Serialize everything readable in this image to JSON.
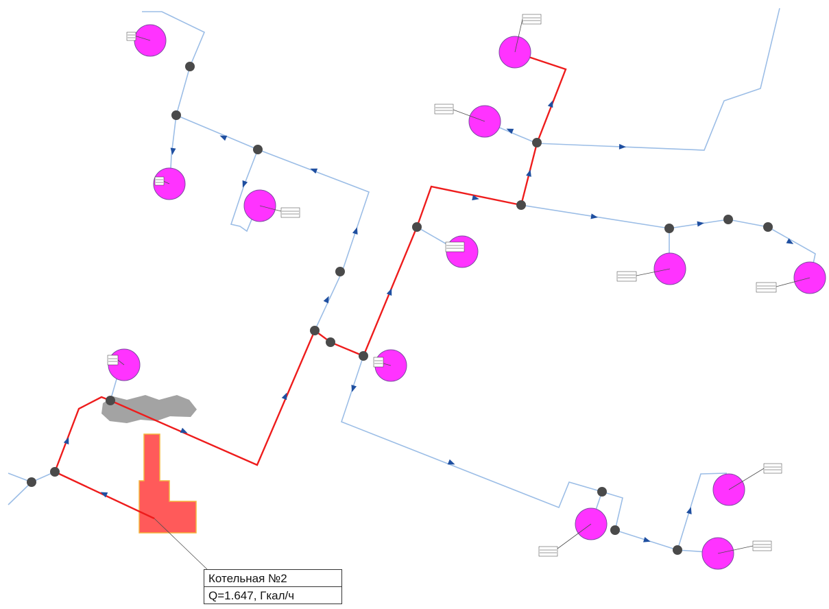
{
  "diagram": {
    "colors": {
      "supply_pipe": "#ee1c1c",
      "network_pipe": "#9bbde6",
      "consumer": "#ff33ff",
      "node": "#4a4a4a",
      "boiler_house": "#ff5a5a",
      "flow_arrow": "#1f4fa0"
    },
    "boiler_label": {
      "name": "Котельная №2",
      "load": "Q=1.647, Гкал/ч"
    }
  }
}
